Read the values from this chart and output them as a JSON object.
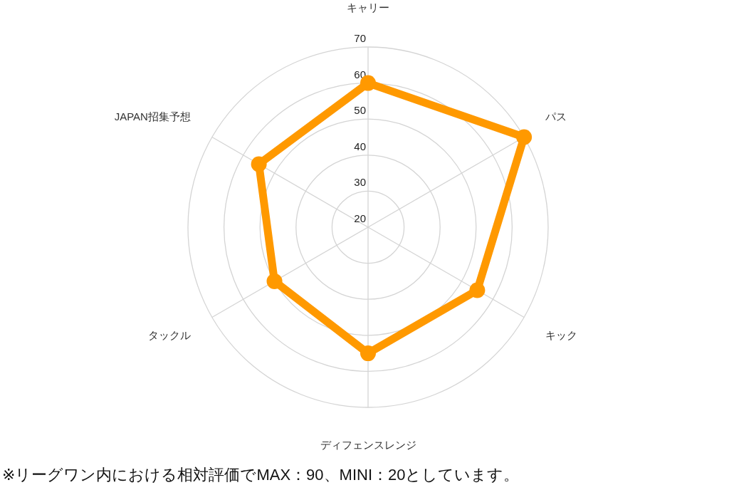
{
  "chart_data": {
    "type": "radar",
    "categories": [
      "キャリー",
      "パス",
      "キック",
      "ディフェンスレンジ",
      "タックル",
      "JAPAN招集予想"
    ],
    "series": [
      {
        "color": "#ff9900",
        "values": [
          60,
          70,
          55,
          55,
          50,
          55
        ]
      }
    ],
    "ylim": [
      20,
      70
    ],
    "yticks": [
      20,
      30,
      40,
      50,
      60,
      70
    ],
    "grid": true,
    "marker": "circle",
    "line_style": "solid",
    "annotations": [
      "※リーグワン内における相対評価でMAX：90、MINI：20としています。"
    ]
  }
}
